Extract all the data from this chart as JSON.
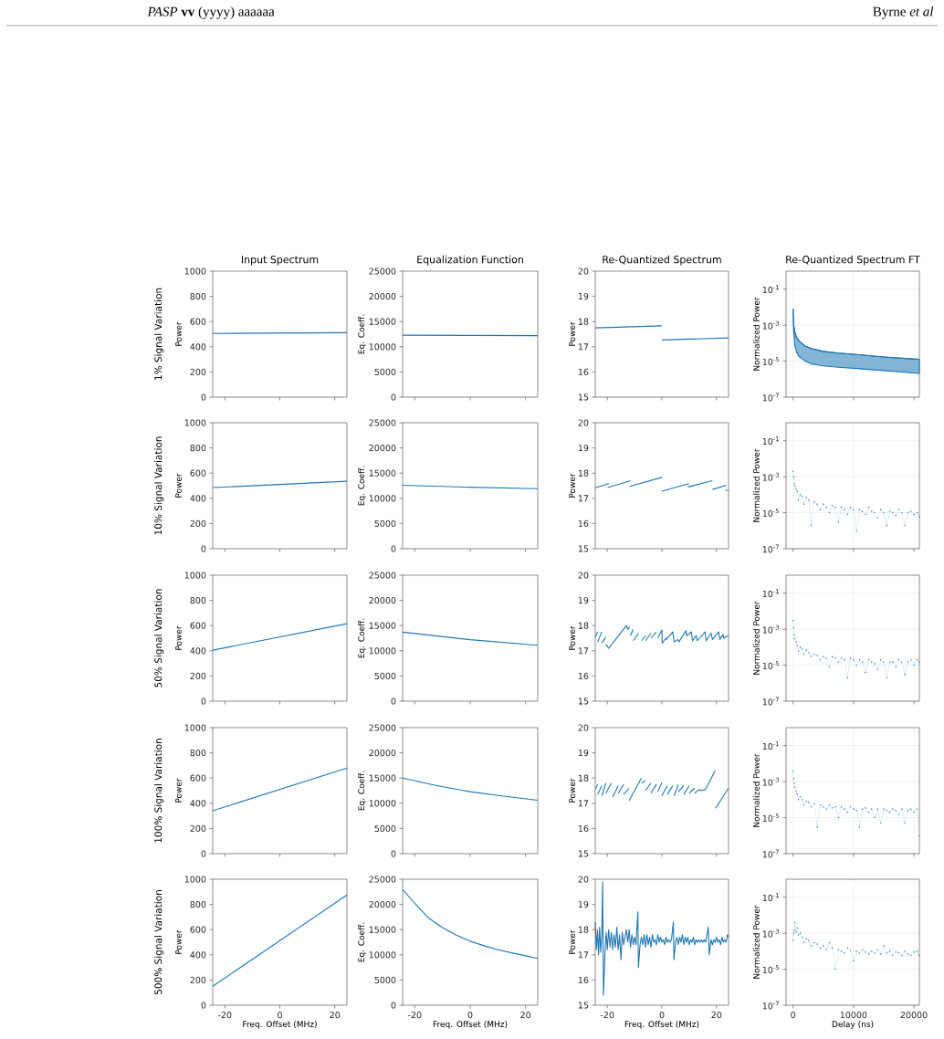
{
  "chart_data": [
    {
      "type": "line",
      "title": "Input Spectrum",
      "ylabel": "Power",
      "annotations": [
        "1% Signal Variation",
        "*PASP* **vv** (yyyy) aaaaaa",
        "Byrne *et al*"
      ],
      "x": [
        -24.4,
        24.4
      ],
      "values": [
        505,
        512
      ],
      "color": "#1f77b4",
      "xlim": [
        -24.4,
        24.4
      ],
      "xticks": [
        -20,
        0,
        20
      ],
      "ylim": [
        0,
        1000
      ],
      "yticks": [
        0,
        200,
        400,
        600,
        800,
        1000
      ],
      "tick_labels": "y"
    },
    {
      "type": "line",
      "title": "Equalization Function",
      "ylabel": "Eq. Coeff.",
      "x": [
        -24.4,
        0,
        24.4
      ],
      "values": [
        12300,
        12250,
        12200
      ],
      "color": "#1f77b4",
      "xlim": [
        -24.4,
        24.4
      ],
      "xticks": [
        -20,
        0,
        20
      ],
      "ylim": [
        0,
        25000
      ],
      "yticks": [
        0,
        5000,
        10000,
        15000,
        20000,
        25000
      ],
      "tick_labels": "y"
    },
    {
      "type": "line",
      "title": "Re-Quantized Spectrum",
      "ylabel": "Power",
      "series": [
        {
          "color": "#1f77b4",
          "x": [
            -24.4,
            0
          ],
          "values": [
            17.75,
            17.83
          ]
        },
        {
          "color": "#1f77b4",
          "x": [
            0,
            24.4
          ],
          "values": [
            17.27,
            17.35
          ]
        }
      ],
      "xlim": [
        -24.4,
        24.4
      ],
      "xticks": [
        -20,
        0,
        20
      ],
      "ylim": [
        15,
        20
      ],
      "yticks": [
        15,
        16,
        17,
        18,
        19,
        20
      ],
      "tick_labels": "y"
    },
    {
      "type": "line",
      "title": "Re-Quantized Spectrum FT",
      "ylabel": "Normalized Power",
      "log": "y",
      "grid": true,
      "xlim": [
        -1160,
        20900
      ],
      "xticks": [
        0,
        10000,
        20000
      ],
      "ylim": [
        1e-07,
        1
      ],
      "yticks": [
        {
          "value": 1e-07,
          "label": "10$^{-7}$"
        },
        {
          "value": 1e-05,
          "label": "10$^{-5}$"
        },
        {
          "value": 0.001,
          "label": "10$^{-3}$"
        },
        {
          "value": 0.1,
          "label": "10$^{-1}$"
        }
      ],
      "tick_labels": "y",
      "series": [
        {
          "color": "#1f77b4",
          "x": [
            0,
            100,
            300,
            600,
            1000,
            2000,
            3000,
            5000,
            7500,
            10000,
            15000,
            20900
          ],
          "values": [
            0.008,
            0.001,
            0.0004,
            0.0002,
            0.00013,
            7e-05,
            5e-05,
            3.5e-05,
            2.8e-05,
            2.4e-05,
            1.7e-05,
            1.25e-05
          ],
          "lower": [
            0.008,
            0.0004,
            7e-05,
            3e-05,
            1.8e-05,
            1e-05,
            7e-06,
            5.5e-06,
            4.6e-06,
            4e-06,
            3e-06,
            2.1e-06
          ],
          "upper": [
            0.008,
            0.001,
            0.0004,
            0.0002,
            0.00013,
            7e-05,
            5e-05,
            3.5e-05,
            2.8e-05,
            2.4e-05,
            1.7e-05,
            1.25e-05
          ]
        }
      ]
    },
    {
      "type": "line",
      "ylabel": "Power",
      "annotations": [
        "10% Signal Variation"
      ],
      "x": [
        -24.4,
        24.4
      ],
      "values": [
        485,
        535
      ],
      "color": "#1f77b4",
      "xlim": [
        -24.4,
        24.4
      ],
      "xticks": [
        -20,
        0,
        20
      ],
      "ylim": [
        0,
        1000
      ],
      "yticks": [
        0,
        200,
        400,
        600,
        800,
        1000
      ],
      "tick_labels": "y"
    },
    {
      "type": "line",
      "ylabel": "Eq. Coeff.",
      "x": [
        -24.4,
        0,
        24.4
      ],
      "values": [
        12600,
        12200,
        11900
      ],
      "color": "#1f77b4",
      "xlim": [
        -24.4,
        24.4
      ],
      "xticks": [
        -20,
        0,
        20
      ],
      "ylim": [
        0,
        25000
      ],
      "yticks": [
        0,
        5000,
        10000,
        15000,
        20000,
        25000
      ],
      "tick_labels": "y"
    },
    {
      "type": "line",
      "ylabel": "Power",
      "series": [
        {
          "color": "#1f77b4",
          "x": [
            -24.4,
            -19.4
          ],
          "values": [
            17.42,
            17.58
          ]
        },
        {
          "color": "#1f77b4",
          "x": [
            -19.9,
            -11.5
          ],
          "values": [
            17.43,
            17.7
          ]
        },
        {
          "color": "#1f77b4",
          "x": [
            -11.8,
            0
          ],
          "values": [
            17.47,
            17.83
          ]
        },
        {
          "color": "#1f77b4",
          "x": [
            0,
            9.9
          ],
          "values": [
            17.28,
            17.58
          ]
        },
        {
          "color": "#1f77b4",
          "x": [
            9.5,
            18.5
          ],
          "values": [
            17.45,
            17.7
          ]
        },
        {
          "color": "#1f77b4",
          "x": [
            18.5,
            23.6
          ],
          "values": [
            17.35,
            17.52
          ]
        },
        {
          "color": "#1f77b4",
          "x": [
            23.2,
            24.4
          ],
          "values": [
            17.34,
            17.3
          ]
        }
      ],
      "xlim": [
        -24.4,
        24.4
      ],
      "xticks": [
        -20,
        0,
        20
      ],
      "ylim": [
        15,
        20
      ],
      "yticks": [
        15,
        16,
        17,
        18,
        19,
        20
      ],
      "tick_labels": "y"
    },
    {
      "type": "line",
      "ylabel": "Normalized Power",
      "log": "y",
      "grid": true,
      "marker": "circle",
      "xlim": [
        -1160,
        20900
      ],
      "xticks": [
        0,
        10000,
        20000
      ],
      "ylim": [
        1e-07,
        1
      ],
      "yticks": [
        {
          "value": 1e-07,
          "label": "10$^{-7}$"
        },
        {
          "value": 1e-05,
          "label": "10$^{-5}$"
        },
        {
          "value": 0.001,
          "label": "10$^{-3}$"
        },
        {
          "value": 0.1,
          "label": "10$^{-1}$"
        }
      ],
      "tick_labels": "y",
      "color": "#1f77b4",
      "x": [
        0,
        100,
        200,
        300,
        500,
        700,
        900,
        1200,
        1500,
        1800,
        2200,
        2600,
        3000,
        3500,
        4000,
        4500,
        5000,
        5500,
        6000,
        6500,
        7000,
        7500,
        8000,
        8500,
        9000,
        9500,
        10000,
        10500,
        11000,
        11500,
        12000,
        12500,
        13000,
        13500,
        14000,
        14500,
        15000,
        15500,
        16000,
        16500,
        17000,
        17500,
        18000,
        18500,
        19000,
        19500,
        20000,
        20500,
        20900
      ],
      "values": [
        0.002,
        0.001,
        0.0004,
        0.0003,
        0.0002,
        0.00015,
        5e-05,
        0.0001,
        8e-05,
        3e-05,
        7e-05,
        5e-05,
        2e-06,
        4e-05,
        3e-05,
        1.5e-05,
        3e-05,
        2e-05,
        1e-05,
        2.5e-05,
        2e-05,
        3e-06,
        2e-05,
        1.5e-05,
        8e-06,
        2e-05,
        1.5e-05,
        1e-06,
        1.5e-05,
        1.2e-05,
        8e-06,
        2e-05,
        1.2e-05,
        1e-05,
        5e-06,
        1.5e-05,
        1e-05,
        2e-06,
        1.2e-05,
        1e-05,
        7e-06,
        1.5e-05,
        1e-05,
        2e-06,
        1e-05,
        1.2e-05,
        8e-06,
        1e-05,
        6e-06
      ]
    },
    {
      "type": "line",
      "ylabel": "Power",
      "annotations": [
        "50% Signal Variation"
      ],
      "x": [
        -24.4,
        24.4
      ],
      "values": [
        405,
        615
      ],
      "color": "#1f77b4",
      "xlim": [
        -24.4,
        24.4
      ],
      "xticks": [
        -20,
        0,
        20
      ],
      "ylim": [
        0,
        1000
      ],
      "yticks": [
        0,
        200,
        400,
        600,
        800,
        1000
      ],
      "tick_labels": "y"
    },
    {
      "type": "line",
      "ylabel": "Eq. Coeff.",
      "x": [
        -24.4,
        0,
        24.4
      ],
      "values": [
        13700,
        12200,
        11100
      ],
      "color": "#1f77b4",
      "xlim": [
        -24.4,
        24.4
      ],
      "xticks": [
        -20,
        0,
        20
      ],
      "ylim": [
        0,
        25000
      ],
      "yticks": [
        0,
        5000,
        10000,
        15000,
        20000,
        25000
      ],
      "tick_labels": "y"
    },
    {
      "type": "line",
      "ylabel": "Power",
      "series": [
        {
          "color": "#1f77b4",
          "x": [
            -24.4,
            -23.5
          ],
          "values": [
            17.55,
            17.75
          ]
        },
        {
          "color": "#1f77b4",
          "x": [
            -23.5,
            -22
          ],
          "values": [
            17.35,
            17.75
          ]
        },
        {
          "color": "#1f77b4",
          "x": [
            -22,
            -20.5
          ],
          "values": [
            17.3,
            17.55
          ]
        },
        {
          "color": "#1f77b4",
          "x": [
            -20.5,
            -19.5,
            -13,
            -12.5,
            -11.8
          ],
          "values": [
            17.25,
            17.1,
            18.0,
            17.85,
            17.95
          ]
        },
        {
          "color": "#1f77b4",
          "x": [
            -11.5,
            -10.5
          ],
          "values": [
            17.6,
            17.85
          ]
        },
        {
          "color": "#1f77b4",
          "x": [
            -10.5,
            -8.5
          ],
          "values": [
            17.4,
            17.7
          ]
        },
        {
          "color": "#1f77b4",
          "x": [
            -7.5,
            -6
          ],
          "values": [
            17.4,
            17.6
          ]
        },
        {
          "color": "#1f77b4",
          "x": [
            -6,
            -4
          ],
          "values": [
            17.4,
            17.7
          ]
        },
        {
          "color": "#1f77b4",
          "x": [
            -4,
            -2
          ],
          "values": [
            17.5,
            17.75
          ]
        },
        {
          "color": "#1f77b4",
          "x": [
            -1.5,
            0,
            0.1,
            1.5,
            1.6,
            4,
            4.5,
            5.8,
            6.2,
            8.8,
            9,
            10.8,
            11.2,
            12.5,
            13,
            15.8,
            16.2,
            18,
            18.5,
            20.8,
            21.2,
            22.4,
            22.6,
            24.4
          ],
          "values": [
            17.5,
            17.83,
            17.3,
            17.5,
            17.45,
            17.75,
            17.35,
            17.45,
            17.35,
            17.8,
            17.6,
            17.75,
            17.4,
            17.6,
            17.4,
            17.75,
            17.4,
            17.7,
            17.45,
            17.75,
            17.45,
            17.65,
            17.5,
            17.6
          ]
        }
      ],
      "xlim": [
        -24.4,
        24.4
      ],
      "xticks": [
        -20,
        0,
        20
      ],
      "ylim": [
        15,
        20
      ],
      "yticks": [
        15,
        16,
        17,
        18,
        19,
        20
      ],
      "tick_labels": "y"
    },
    {
      "type": "line",
      "ylabel": "Normalized Power",
      "log": "y",
      "grid": true,
      "marker": "circle",
      "xlim": [
        -1160,
        20900
      ],
      "xticks": [
        0,
        10000,
        20000
      ],
      "ylim": [
        1e-07,
        1
      ],
      "yticks": [
        {
          "value": 1e-07,
          "label": "10$^{-7}$"
        },
        {
          "value": 1e-05,
          "label": "10$^{-5}$"
        },
        {
          "value": 0.001,
          "label": "10$^{-3}$"
        },
        {
          "value": 0.1,
          "label": "10$^{-1}$"
        }
      ],
      "tick_labels": "y",
      "color": "#1f77b4",
      "x": [
        0,
        100,
        200,
        300,
        500,
        700,
        900,
        1200,
        1500,
        1800,
        2200,
        2600,
        3000,
        3500,
        4000,
        4500,
        5000,
        5500,
        6000,
        6500,
        7000,
        7500,
        8000,
        8500,
        9000,
        9500,
        10000,
        10500,
        11000,
        11500,
        12000,
        12500,
        13000,
        13500,
        14000,
        14500,
        15000,
        15500,
        16000,
        16500,
        17000,
        17500,
        18000,
        18500,
        19000,
        19500,
        20000,
        20500,
        20900
      ],
      "values": [
        0.003,
        0.0012,
        0.0005,
        0.0003,
        0.0002,
        0.00012,
        6e-05,
        0.0001,
        8e-05,
        4e-05,
        7e-05,
        5e-05,
        3e-05,
        4e-05,
        3.5e-05,
        2e-05,
        3e-05,
        2.5e-05,
        8e-06,
        3e-05,
        2.5e-05,
        1.5e-05,
        2.5e-05,
        2e-05,
        2e-06,
        2.5e-05,
        2e-05,
        1e-05,
        2e-05,
        1.5e-05,
        4e-06,
        2e-05,
        1.5e-05,
        1.2e-05,
        6e-06,
        2e-05,
        1.5e-05,
        2e-06,
        1.5e-05,
        1.5e-05,
        8e-06,
        2e-05,
        1.5e-05,
        3e-06,
        1.5e-05,
        2e-05,
        1e-05,
        2e-05,
        1.5e-05
      ]
    },
    {
      "type": "line",
      "ylabel": "Power",
      "annotations": [
        "100% Signal Variation"
      ],
      "x": [
        -24.4,
        24.4
      ],
      "values": [
        340,
        680
      ],
      "color": "#1f77b4",
      "xlim": [
        -24.4,
        24.4
      ],
      "xticks": [
        -20,
        0,
        20
      ],
      "ylim": [
        0,
        1000
      ],
      "yticks": [
        0,
        200,
        400,
        600,
        800,
        1000
      ],
      "tick_labels": "y"
    },
    {
      "type": "line",
      "ylabel": "Eq. Coeff.",
      "x": [
        -24.4,
        -12,
        0,
        12,
        24.4
      ],
      "values": [
        15000,
        13500,
        12300,
        11400,
        10600
      ],
      "color": "#1f77b4",
      "xlim": [
        -24.4,
        24.4
      ],
      "xticks": [
        -20,
        0,
        20
      ],
      "ylim": [
        0,
        25000
      ],
      "yticks": [
        0,
        5000,
        10000,
        15000,
        20000,
        25000
      ],
      "tick_labels": "y"
    },
    {
      "type": "line",
      "ylabel": "Power",
      "series": [
        {
          "color": "#1f77b4",
          "x": [
            -24.4,
            -23.5
          ],
          "values": [
            17.55,
            17.75
          ]
        },
        {
          "color": "#1f77b4",
          "x": [
            -23.5,
            -22
          ],
          "values": [
            17.35,
            17.7
          ]
        },
        {
          "color": "#1f77b4",
          "x": [
            -22,
            -20.5
          ],
          "values": [
            17.3,
            17.8
          ]
        },
        {
          "color": "#1f77b4",
          "x": [
            -20.5,
            -18.5
          ],
          "values": [
            17.4,
            17.8
          ]
        },
        {
          "color": "#1f77b4",
          "x": [
            -18,
            -16
          ],
          "values": [
            17.25,
            17.7
          ]
        },
        {
          "color": "#1f77b4",
          "x": [
            -16,
            -14
          ],
          "values": [
            17.4,
            17.75
          ]
        },
        {
          "color": "#1f77b4",
          "x": [
            -14,
            -12
          ],
          "values": [
            17.35,
            17.6
          ]
        },
        {
          "color": "#1f77b4",
          "x": [
            -12,
            -7.5
          ],
          "values": [
            17.1,
            18.0
          ]
        },
        {
          "color": "#1f77b4",
          "x": [
            -7.5,
            -6
          ],
          "values": [
            17.8,
            17.9
          ]
        },
        {
          "color": "#1f77b4",
          "x": [
            -6,
            -4
          ],
          "values": [
            17.5,
            17.8
          ]
        },
        {
          "color": "#1f77b4",
          "x": [
            -4,
            -2
          ],
          "values": [
            17.4,
            17.75
          ]
        },
        {
          "color": "#1f77b4",
          "x": [
            -1.5,
            0
          ],
          "values": [
            17.45,
            17.83
          ]
        },
        {
          "color": "#1f77b4",
          "x": [
            0,
            2
          ],
          "values": [
            17.3,
            17.7
          ]
        },
        {
          "color": "#1f77b4",
          "x": [
            2,
            4
          ],
          "values": [
            17.35,
            17.7
          ]
        },
        {
          "color": "#1f77b4",
          "x": [
            4.5,
            6
          ],
          "values": [
            17.3,
            17.75
          ]
        },
        {
          "color": "#1f77b4",
          "x": [
            6,
            8
          ],
          "values": [
            17.45,
            17.7
          ]
        },
        {
          "color": "#1f77b4",
          "x": [
            8,
            10
          ],
          "values": [
            17.35,
            17.7
          ]
        },
        {
          "color": "#1f77b4",
          "x": [
            10,
            12
          ],
          "values": [
            17.4,
            17.6
          ]
        },
        {
          "color": "#1f77b4",
          "x": [
            12,
            13.8,
            14,
            16,
            19.5
          ],
          "values": [
            17.4,
            17.55,
            17.5,
            17.55,
            18.3
          ]
        },
        {
          "color": "#1f77b4",
          "x": [
            19.6,
            24.4
          ],
          "values": [
            16.8,
            17.6
          ]
        }
      ],
      "xlim": [
        -24.4,
        24.4
      ],
      "xticks": [
        -20,
        0,
        20
      ],
      "ylim": [
        15,
        20
      ],
      "yticks": [
        15,
        16,
        17,
        18,
        19,
        20
      ],
      "tick_labels": "y"
    },
    {
      "type": "line",
      "ylabel": "Normalized Power",
      "log": "y",
      "grid": true,
      "marker": "circle",
      "xlim": [
        -1160,
        20900
      ],
      "xticks": [
        0,
        10000,
        20000
      ],
      "ylim": [
        1e-07,
        1
      ],
      "yticks": [
        {
          "value": 1e-07,
          "label": "10$^{-7}$"
        },
        {
          "value": 1e-05,
          "label": "10$^{-5}$"
        },
        {
          "value": 0.001,
          "label": "10$^{-3}$"
        },
        {
          "value": 0.1,
          "label": "10$^{-1}$"
        }
      ],
      "tick_labels": "y",
      "color": "#1f77b4",
      "x": [
        0,
        100,
        200,
        300,
        500,
        700,
        900,
        1200,
        1500,
        1800,
        2200,
        2600,
        3000,
        3500,
        4000,
        4500,
        5000,
        5500,
        6000,
        6500,
        7000,
        7500,
        8000,
        8500,
        9000,
        9500,
        10000,
        10500,
        11000,
        11500,
        12000,
        12500,
        13000,
        13500,
        14000,
        14500,
        15000,
        15500,
        16000,
        16500,
        17000,
        17500,
        18000,
        18500,
        19000,
        19500,
        20000,
        20500,
        20900
      ],
      "values": [
        0.004,
        0.0015,
        0.0008,
        0.0005,
        0.0003,
        0.0002,
        0.0001,
        0.00015,
        0.0001,
        5e-05,
        8e-05,
        7e-05,
        4e-05,
        6e-05,
        3e-06,
        5e-05,
        4e-05,
        3e-05,
        5e-05,
        3.5e-05,
        4e-05,
        1e-05,
        4e-05,
        3e-05,
        2e-05,
        4e-05,
        3e-05,
        2.5e-05,
        3e-06,
        3e-05,
        3.5e-05,
        2e-05,
        3e-05,
        1e-05,
        3e-05,
        5e-06,
        3e-05,
        2.5e-05,
        2e-05,
        3e-05,
        2.5e-05,
        1.5e-05,
        3e-05,
        5e-06,
        2.5e-05,
        3e-05,
        2e-05,
        3e-05,
        1e-06
      ]
    },
    {
      "type": "line",
      "xlabel": "Freq. Offset (MHz)",
      "ylabel": "Power",
      "annotations": [
        "500% Signal Variation"
      ],
      "x": [
        -24.4,
        24.4
      ],
      "values": [
        150,
        875
      ],
      "color": "#1f77b4",
      "xlim": [
        -24.4,
        24.4
      ],
      "xticks": [
        -20,
        0,
        20
      ],
      "ylim": [
        0,
        1000
      ],
      "yticks": [
        0,
        200,
        400,
        600,
        800,
        1000
      ]
    },
    {
      "type": "line",
      "xlabel": "Freq. Offset (MHz)",
      "ylabel": "Eq. Coeff.",
      "x": [
        -24.4,
        -20,
        -15,
        -10,
        -5,
        0,
        5,
        10,
        15,
        20,
        24.4
      ],
      "values": [
        23000,
        20200,
        17300,
        15400,
        13900,
        12700,
        11800,
        11000,
        10400,
        9800,
        9300
      ],
      "color": "#1f77b4",
      "xlim": [
        -24.4,
        24.4
      ],
      "xticks": [
        -20,
        0,
        20
      ],
      "ylim": [
        0,
        25000
      ],
      "yticks": [
        0,
        5000,
        10000,
        15000,
        20000,
        25000
      ]
    },
    {
      "type": "line",
      "xlabel": "Freq. Offset (MHz)",
      "ylabel": "Power",
      "x": [
        -24.4,
        -24,
        -23.6,
        -23.2,
        -22.8,
        -22.4,
        -22,
        -21.7,
        -21.4,
        -20.8,
        -20.4,
        -20,
        -19.5,
        -19,
        -18.5,
        -18,
        -17.5,
        -17,
        -16.5,
        -16,
        -15.5,
        -15,
        -14.5,
        -14,
        -13,
        -12.5,
        -12,
        -11.5,
        -11,
        -10.5,
        -10,
        -9.5,
        -8.8,
        -8.6,
        -8,
        -7.5,
        -7,
        -6.5,
        -6,
        -5.5,
        -5,
        -4.5,
        -4,
        -3.5,
        -3,
        -2.5,
        -2,
        -1.5,
        -1,
        -0.5,
        0,
        0.5,
        1,
        1.5,
        2,
        2.5,
        3,
        3.5,
        4.2,
        4.4,
        5,
        5.5,
        6,
        6.5,
        7,
        7.5,
        8,
        8.5,
        9,
        9.5,
        10,
        10.5,
        11,
        11.5,
        12,
        12.5,
        13,
        13.5,
        14,
        14.5,
        15,
        15.5,
        16,
        17,
        17.3,
        18,
        18.5,
        19,
        19.5,
        20,
        20.5,
        21,
        21.5,
        22,
        22.5,
        23,
        23.5,
        24,
        24.4
      ],
      "values": [
        18.3,
        17.2,
        18.0,
        17.0,
        18.1,
        17.1,
        17.8,
        19.9,
        15.4,
        17.2,
        17.9,
        17.2,
        18.0,
        17.3,
        17.9,
        17.2,
        17.8,
        17.3,
        18.1,
        17.2,
        17.8,
        16.8,
        17.9,
        17.4,
        18.0,
        17.5,
        18.0,
        17.3,
        17.8,
        17.4,
        17.7,
        17.4,
        18.7,
        16.5,
        17.4,
        17.7,
        17.4,
        17.8,
        17.3,
        17.8,
        17.4,
        17.7,
        17.3,
        17.8,
        17.5,
        17.6,
        17.4,
        17.8,
        17.5,
        17.7,
        17.5,
        17.6,
        17.4,
        17.7,
        17.5,
        17.6,
        17.5,
        17.6,
        18.3,
        16.8,
        17.5,
        17.7,
        17.4,
        17.7,
        17.5,
        17.8,
        17.4,
        17.7,
        17.5,
        17.7,
        17.4,
        17.6,
        17.5,
        17.7,
        17.4,
        17.6,
        17.5,
        17.6,
        17.5,
        17.6,
        17.5,
        17.6,
        17.5,
        18.1,
        17.0,
        17.6,
        17.4,
        17.6,
        17.5,
        17.7,
        17.5,
        17.6,
        17.4,
        17.7,
        17.5,
        17.6,
        17.5,
        17.8,
        17.7
      ],
      "color": "#1f77b4",
      "xlim": [
        -24.4,
        24.4
      ],
      "xticks": [
        -20,
        0,
        20
      ],
      "ylim": [
        15,
        20
      ],
      "yticks": [
        15,
        16,
        17,
        18,
        19,
        20
      ]
    },
    {
      "type": "line",
      "xlabel": "Delay (ns)",
      "ylabel": "Normalized Power",
      "log": "y",
      "grid": true,
      "marker": "circle",
      "xlim": [
        -1160,
        20900
      ],
      "xticks": [
        0,
        10000,
        20000
      ],
      "ylim": [
        1e-07,
        1
      ],
      "yticks": [
        {
          "value": 1e-07,
          "label": "10$^{-7}$"
        },
        {
          "value": 1e-05,
          "label": "10$^{-5}$"
        },
        {
          "value": 0.001,
          "label": "10$^{-3}$"
        },
        {
          "value": 0.1,
          "label": "10$^{-1}$"
        }
      ],
      "color": "#1f77b4",
      "x": [
        0,
        100,
        200,
        300,
        500,
        700,
        900,
        1200,
        1500,
        1800,
        2200,
        2600,
        3000,
        3500,
        4000,
        4500,
        5000,
        5500,
        6000,
        6500,
        7000,
        7500,
        8000,
        8500,
        9000,
        9500,
        10000,
        10500,
        11000,
        11500,
        12000,
        12500,
        13000,
        13500,
        14000,
        14500,
        15000,
        15500,
        16000,
        16500,
        17000,
        17500,
        18000,
        18500,
        19000,
        19500,
        20000,
        20500,
        20900
      ],
      "values": [
        0.0004,
        0.001,
        0.0015,
        0.004,
        0.0012,
        0.002,
        0.0008,
        0.001,
        0.0006,
        0.0003,
        0.0005,
        0.0004,
        0.0002,
        0.0003,
        0.00025,
        0.00015,
        0.0002,
        0.00012,
        0.0003,
        0.00015,
        1e-05,
        0.00012,
        0.0001,
        8e-05,
        0.00015,
        0.00011,
        3e-05,
        0.0001,
        8e-05,
        0.00012,
        9e-05,
        7e-05,
        0.0001,
        8e-05,
        0.00012,
        7e-05,
        0.0002,
        8e-05,
        0.0001,
        6e-05,
        9e-05,
        8e-05,
        6e-05,
        0.0001,
        7e-05,
        6e-05,
        9e-05,
        0.0001,
        6e-05
      ]
    }
  ]
}
